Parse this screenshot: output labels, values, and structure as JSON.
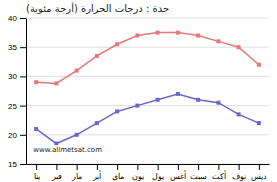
{
  "chart_data": {
    "type": "line",
    "title": "جدة : درجات الحرارة (أرجة مئوية)",
    "categories": [
      "ينا",
      "فبر",
      "مار",
      "أبر",
      "ماي",
      "يون",
      "يول",
      "أغس",
      "سبت",
      "أكت",
      "نوف",
      "ديس"
    ],
    "series": [
      {
        "color": "#e87878",
        "marker": "square",
        "values": [
          29.0,
          28.8,
          31.0,
          33.5,
          35.5,
          37.0,
          37.5,
          37.5,
          37.0,
          36.0,
          35.0,
          32.0
        ]
      },
      {
        "color": "#6868c8",
        "marker": "square",
        "values": [
          21.0,
          18.5,
          20.0,
          22.0,
          24.0,
          25.0,
          26.0,
          27.0,
          26.0,
          25.5,
          23.5,
          22.0
        ]
      }
    ],
    "ylim": [
      15,
      40
    ],
    "yticks": [
      15,
      20,
      25,
      30,
      35,
      40
    ],
    "grid": true,
    "annotations": [
      "www.allmetsat.com"
    ]
  }
}
